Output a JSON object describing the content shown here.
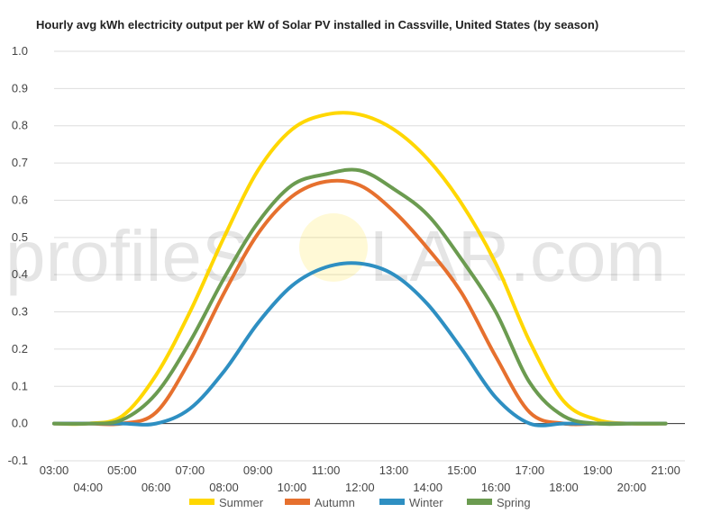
{
  "watermark": {
    "left": "profileS",
    "right": "LAR.com"
  },
  "chart_data": {
    "type": "line",
    "title": "Hourly avg kWh electricity output per kW of Solar PV installed in Cassville, United States (by season)",
    "xlabel": "",
    "ylabel": "",
    "ylim": [
      -0.1,
      1.0
    ],
    "y_ticks": [
      "-0.1",
      "0.0",
      "0.1",
      "0.2",
      "0.3",
      "0.4",
      "0.5",
      "0.6",
      "0.7",
      "0.8",
      "0.9",
      "1.0"
    ],
    "x": [
      "03:00",
      "04:00",
      "05:00",
      "06:00",
      "07:00",
      "08:00",
      "09:00",
      "10:00",
      "11:00",
      "12:00",
      "13:00",
      "14:00",
      "15:00",
      "16:00",
      "17:00",
      "18:00",
      "19:00",
      "20:00",
      "21:00"
    ],
    "grid": true,
    "legend_position": "bottom",
    "series": [
      {
        "name": "Summer",
        "color": "#ffd700",
        "values": [
          0,
          0,
          0.02,
          0.13,
          0.3,
          0.5,
          0.68,
          0.79,
          0.83,
          0.83,
          0.79,
          0.71,
          0.59,
          0.43,
          0.22,
          0.06,
          0.01,
          0,
          0
        ]
      },
      {
        "name": "Autumn",
        "color": "#e6702e",
        "values": [
          0,
          0,
          0,
          0.03,
          0.17,
          0.35,
          0.51,
          0.61,
          0.65,
          0.64,
          0.57,
          0.47,
          0.35,
          0.18,
          0.03,
          0,
          0,
          0,
          0
        ]
      },
      {
        "name": "Winter",
        "color": "#2e8fc2",
        "values": [
          0,
          0,
          0,
          0,
          0.04,
          0.14,
          0.27,
          0.37,
          0.42,
          0.43,
          0.4,
          0.32,
          0.2,
          0.07,
          0,
          0,
          0,
          0,
          0
        ]
      },
      {
        "name": "Spring",
        "color": "#6b9b50",
        "values": [
          0,
          0,
          0.01,
          0.08,
          0.22,
          0.39,
          0.54,
          0.64,
          0.67,
          0.68,
          0.63,
          0.56,
          0.44,
          0.3,
          0.11,
          0.02,
          0,
          0,
          0
        ]
      }
    ]
  }
}
